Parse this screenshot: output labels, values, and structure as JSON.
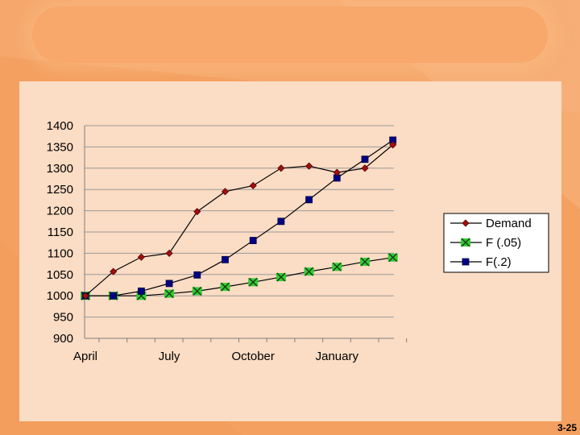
{
  "slide": {
    "number": "3-25",
    "colors": {
      "background": "#f4a060",
      "panel": "#fbdcc4",
      "banner": "#f7a86a"
    }
  },
  "chart_data": {
    "type": "line",
    "title": "",
    "xlabel": "",
    "ylabel": "",
    "x_tick_labels": [
      "April",
      "July",
      "October",
      "January"
    ],
    "x_tick_label_positions": [
      1,
      4,
      7,
      10
    ],
    "n_points": 12,
    "ylim": [
      900,
      1400
    ],
    "y_ticks": [
      900,
      950,
      1000,
      1050,
      1100,
      1150,
      1200,
      1250,
      1300,
      1350,
      1400
    ],
    "grid": true,
    "legend_position": "right",
    "series": [
      {
        "name": "Demand",
        "marker": "diamond",
        "color": "#a01010",
        "values": [
          1000,
          1057,
          1091,
          1100,
          1198,
          1245,
          1259,
          1300,
          1305,
          1290,
          1300,
          1355
        ]
      },
      {
        "name": "F  (.05)",
        "marker": "x-box",
        "color": "#33cc33",
        "values": [
          1000,
          1000,
          1000,
          1005,
          1011,
          1021,
          1032,
          1044,
          1057,
          1068,
          1080,
          1090
        ]
      },
      {
        "name": "F(.2)",
        "marker": "square",
        "color": "#000080",
        "values": [
          1000,
          1000,
          1011,
          1029,
          1049,
          1085,
          1130,
          1175,
          1226,
          1277,
          1321,
          1366
        ]
      }
    ]
  }
}
